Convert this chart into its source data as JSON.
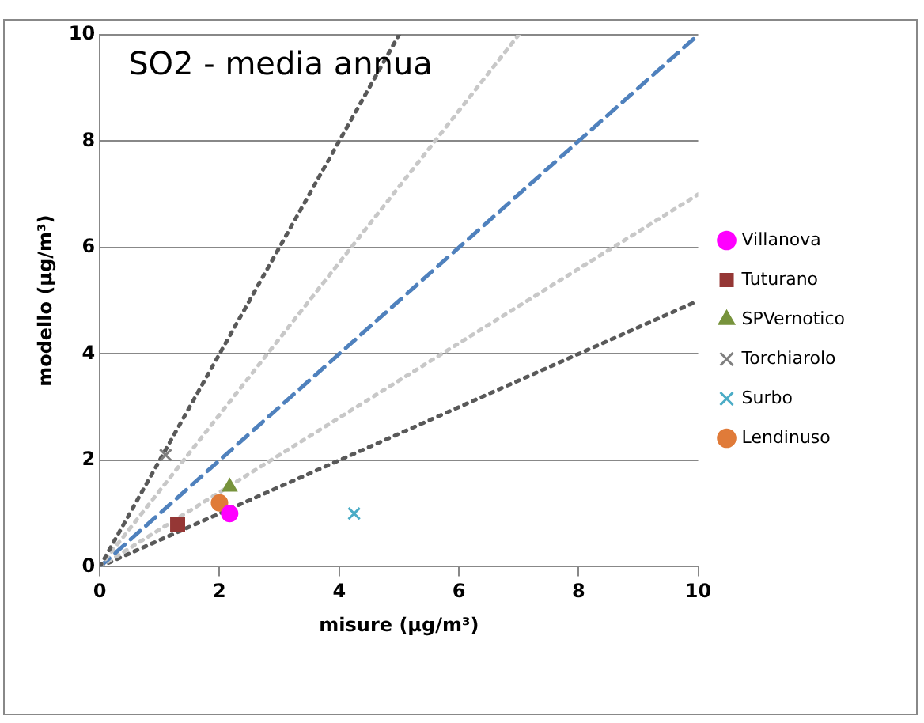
{
  "chart_data": {
    "type": "scatter",
    "title": "SO2 - media annua",
    "xlabel": "misure (µg/m³)",
    "ylabel": "modello (µg/m³)",
    "xlim": [
      0,
      10
    ],
    "xticks": [
      0,
      2,
      4,
      6,
      8,
      10
    ],
    "ylim": [
      0,
      10
    ],
    "yticks": [
      0,
      2,
      4,
      6,
      8,
      10
    ],
    "grid": "y",
    "legend": "right",
    "series": [
      {
        "name": "Villanova",
        "color": "#ff00ff",
        "marker": "circle",
        "x": [
          2.17
        ],
        "values": [
          1.0
        ]
      },
      {
        "name": "Tuturano",
        "color": "#953735",
        "marker": "square",
        "x": [
          1.3
        ],
        "values": [
          0.8
        ]
      },
      {
        "name": "SPVernotico",
        "color": "#77933c",
        "marker": "triangle",
        "x": [
          2.17
        ],
        "values": [
          1.5
        ]
      },
      {
        "name": "Torchiarolo",
        "color": "#7f7f7f",
        "marker": "cross",
        "x": [
          1.1
        ],
        "values": [
          2.1
        ]
      },
      {
        "name": "Surbo",
        "color": "#4bacc6",
        "marker": "cross",
        "x": [
          4.25
        ],
        "values": [
          1.0
        ]
      },
      {
        "name": "Lendinuso",
        "color": "#e07b39",
        "marker": "circle",
        "x": [
          2.0
        ],
        "values": [
          1.2
        ]
      },
      {
        "type": "line",
        "color": "#595959",
        "line_style": "dotted",
        "marker": "none",
        "x": [
          0,
          5
        ],
        "values": [
          0,
          10
        ]
      },
      {
        "type": "line",
        "color": "#c8c8c8",
        "line_style": "dotted",
        "marker": "none",
        "x": [
          0,
          7
        ],
        "values": [
          0,
          10
        ]
      },
      {
        "type": "line",
        "color": "#4f81bd",
        "line_style": "dashed",
        "marker": "none",
        "x": [
          0,
          10
        ],
        "values": [
          0,
          10
        ]
      },
      {
        "type": "line",
        "color": "#c8c8c8",
        "line_style": "dotted",
        "marker": "none",
        "x": [
          0,
          10
        ],
        "values": [
          0,
          7
        ]
      },
      {
        "type": "line",
        "color": "#595959",
        "line_style": "dotted",
        "marker": "none",
        "x": [
          0,
          10
        ],
        "values": [
          0,
          5
        ]
      }
    ]
  }
}
